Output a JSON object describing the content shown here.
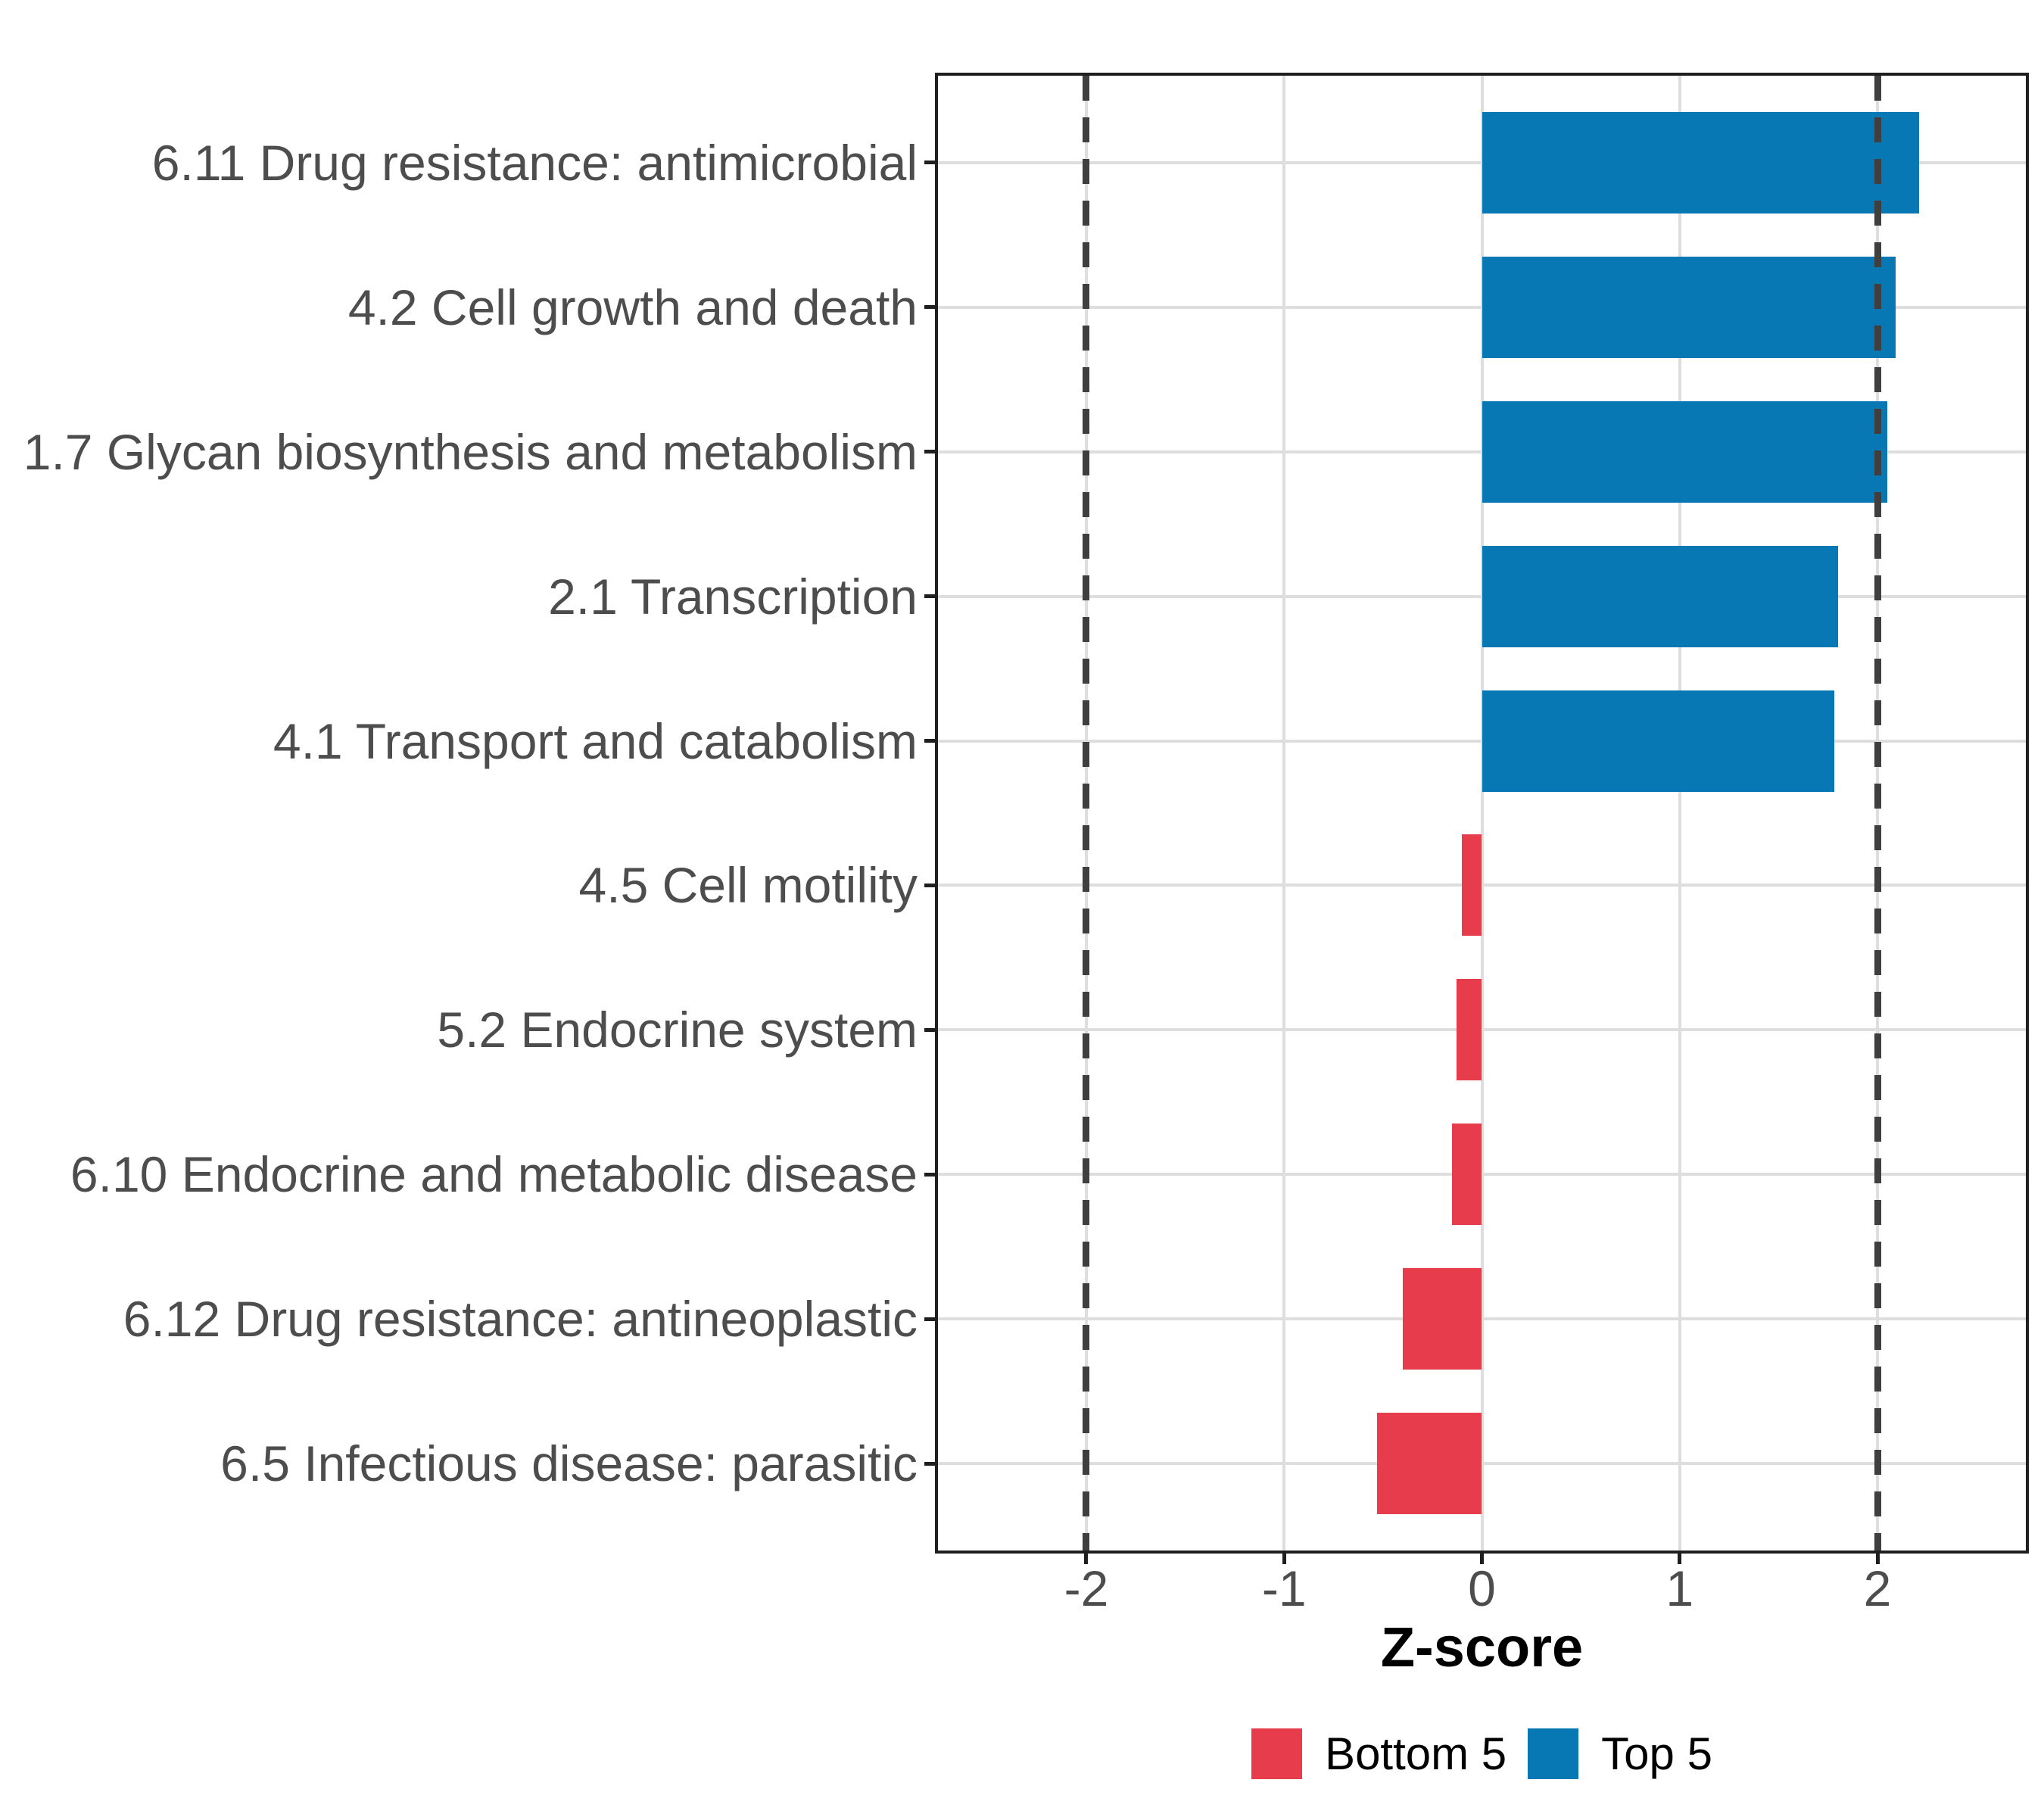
{
  "chart_data": {
    "type": "bar",
    "orientation": "horizontal",
    "title": "",
    "xlabel": "Z-score",
    "ylabel": "",
    "categories": [
      "6.11 Drug resistance: antimicrobial",
      "4.2 Cell growth and death",
      "1.7 Glycan biosynthesis and metabolism",
      "2.1 Transcription",
      "4.1 Transport and catabolism",
      "4.5 Cell motility",
      "5.2 Endocrine system",
      "6.10 Endocrine and metabolic disease",
      "6.12 Drug resistance: antineoplastic",
      "6.5 Infectious disease: parasitic"
    ],
    "values": [
      2.21,
      2.09,
      2.05,
      1.8,
      1.78,
      -0.1,
      -0.13,
      -0.15,
      -0.4,
      -0.53
    ],
    "groups": [
      "Top 5",
      "Top 5",
      "Top 5",
      "Top 5",
      "Top 5",
      "Bottom 5",
      "Bottom 5",
      "Bottom 5",
      "Bottom 5",
      "Bottom 5"
    ],
    "bar_colors": {
      "Top 5": "#0778b4",
      "Bottom 5": "#e63c4b"
    },
    "x_ticks": {
      "values": [
        -2,
        -1,
        0,
        1,
        2
      ],
      "labels": [
        "-2",
        "-1",
        "0",
        "1",
        "2"
      ]
    },
    "xlim": [
      -2.75,
      2.75
    ],
    "reference_lines": {
      "values": [
        -2,
        2
      ],
      "style": "dashed",
      "color": "#3f3f3f"
    },
    "grid": true,
    "legend": {
      "position": "bottom",
      "items": [
        {
          "label": "Bottom 5",
          "color": "#e63c4b"
        },
        {
          "label": "Top 5",
          "color": "#0778b4"
        }
      ]
    }
  }
}
